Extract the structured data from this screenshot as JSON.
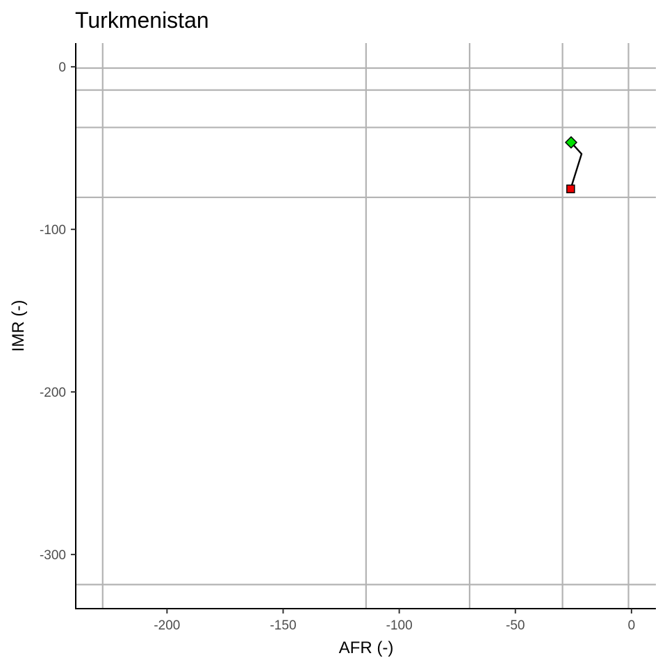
{
  "chart_data": {
    "type": "line",
    "title": "Turkmenistan",
    "xlabel": "AFR (-)",
    "ylabel": "IMR (-)",
    "xlim": [
      -239.3,
      10.5
    ],
    "ylim": [
      -333.3,
      14.6
    ],
    "xticks": [
      -200,
      -150,
      -100,
      -50,
      0
    ],
    "xtick_labels": [
      "-200",
      "-150",
      "-100",
      "-50",
      "0"
    ],
    "yticks": [
      0,
      -100,
      -200,
      -300
    ],
    "ytick_labels": [
      "0",
      "-100",
      "-200",
      "-300"
    ],
    "grid": false,
    "reference_lines": {
      "vertical_x": [
        -227.7,
        -114.3,
        -69.7,
        -29.7,
        -1.3
      ],
      "horizontal_y": [
        -0.8,
        -14.3,
        -37.3,
        -80.3,
        -318.5
      ]
    },
    "series": [
      {
        "x": [
          -26,
          -21.5,
          -26.2
        ],
        "y": [
          -46.5,
          -53.6,
          -75.1
        ],
        "color": "#000000"
      }
    ],
    "markers": [
      {
        "label": "start",
        "x": -26,
        "y": -46.5,
        "shape": "diamond",
        "color": "#00e000"
      },
      {
        "label": "end",
        "x": -26.2,
        "y": -75.1,
        "shape": "square",
        "color": "#ee0000"
      }
    ]
  }
}
